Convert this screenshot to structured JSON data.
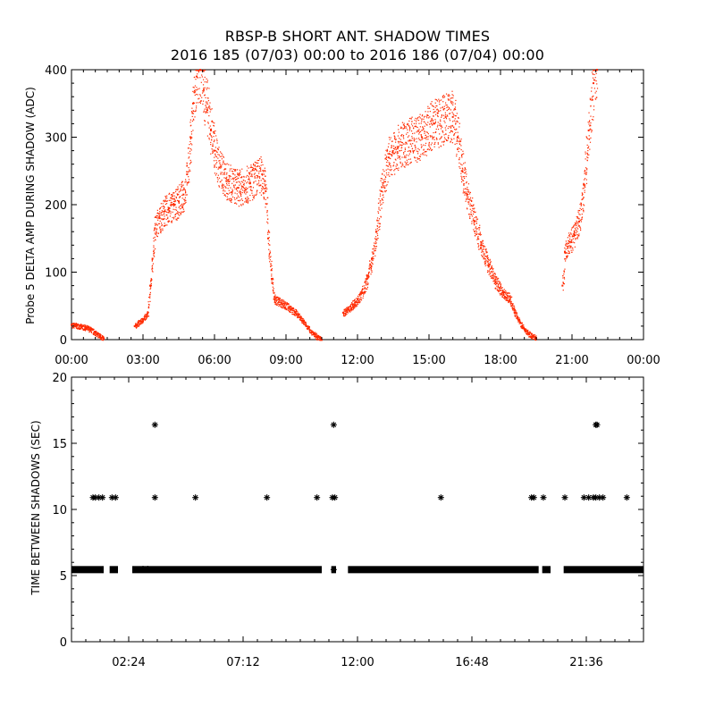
{
  "figure": {
    "title_line1": "RBSP-B SHORT ANT. SHADOW TIMES",
    "title_line2": "2016 185 (07/03) 00:00 to 2016 186 (07/04) 00:00"
  },
  "colors": {
    "amp_points": "#ff2a00",
    "interval_points": "#000000",
    "axes": "#000000",
    "background": "#ffffff"
  },
  "chart_data": [
    {
      "type": "scatter",
      "title": "",
      "xlabel": "",
      "ylabel": "Probe 5 DELTA AMP DURING SHADOW (ADC)",
      "x_unit": "hours",
      "xlim": [
        0,
        24
      ],
      "ylim": [
        0,
        400
      ],
      "xticks": [
        0,
        3,
        6,
        9,
        12,
        15,
        18,
        21,
        24
      ],
      "xtick_labels": [
        "00:00",
        "03:00",
        "06:00",
        "09:00",
        "12:00",
        "15:00",
        "18:00",
        "21:00",
        "00:00"
      ],
      "yticks": [
        0,
        100,
        200,
        300,
        400
      ],
      "ytick_labels": [
        "0",
        "100",
        "200",
        "300",
        "400"
      ],
      "grid": false,
      "series": [
        {
          "marker": "dot",
          "points": [
            [
              0.0,
              22
            ],
            [
              0.2,
              21
            ],
            [
              0.4,
              19
            ],
            [
              0.6,
              18
            ],
            [
              0.8,
              15
            ],
            [
              1.0,
              10
            ],
            [
              1.2,
              5
            ],
            [
              1.35,
              1
            ],
            [
              2.65,
              20
            ],
            [
              2.8,
              25
            ],
            [
              3.0,
              30
            ],
            [
              3.2,
              40
            ],
            [
              3.3,
              80
            ],
            [
              3.4,
              120
            ],
            [
              3.5,
              165
            ],
            [
              3.7,
              180
            ],
            [
              3.9,
              190
            ],
            [
              4.1,
              195
            ],
            [
              4.3,
              200
            ],
            [
              4.5,
              205
            ],
            [
              4.7,
              215
            ],
            [
              4.85,
              245
            ],
            [
              5.0,
              300
            ],
            [
              5.1,
              350
            ],
            [
              5.25,
              390
            ],
            [
              5.4,
              400
            ],
            [
              5.55,
              370
            ],
            [
              5.7,
              340
            ],
            [
              5.85,
              310
            ],
            [
              6.0,
              280
            ],
            [
              6.2,
              255
            ],
            [
              6.5,
              235
            ],
            [
              7.0,
              225
            ],
            [
              7.5,
              232
            ],
            [
              8.0,
              245
            ],
            [
              8.15,
              220
            ],
            [
              8.25,
              150
            ],
            [
              8.4,
              90
            ],
            [
              8.5,
              60
            ],
            [
              8.8,
              55
            ],
            [
              9.1,
              48
            ],
            [
              9.4,
              40
            ],
            [
              9.7,
              28
            ],
            [
              10.0,
              14
            ],
            [
              10.3,
              4
            ],
            [
              10.5,
              0
            ],
            [
              11.4,
              40
            ],
            [
              11.6,
              45
            ],
            [
              11.8,
              52
            ],
            [
              12.0,
              60
            ],
            [
              12.2,
              70
            ],
            [
              12.4,
              90
            ],
            [
              12.6,
              120
            ],
            [
              12.8,
              160
            ],
            [
              13.0,
              220
            ],
            [
              13.3,
              270
            ],
            [
              13.7,
              285
            ],
            [
              14.2,
              295
            ],
            [
              14.7,
              300
            ],
            [
              15.2,
              320
            ],
            [
              15.7,
              330
            ],
            [
              16.0,
              330
            ],
            [
              16.2,
              300
            ],
            [
              16.4,
              250
            ],
            [
              16.6,
              215
            ],
            [
              16.9,
              175
            ],
            [
              17.2,
              140
            ],
            [
              17.5,
              110
            ],
            [
              17.8,
              85
            ],
            [
              18.1,
              70
            ],
            [
              18.4,
              60
            ],
            [
              18.6,
              40
            ],
            [
              18.9,
              20
            ],
            [
              19.2,
              8
            ],
            [
              19.5,
              2
            ],
            [
              20.6,
              80
            ],
            [
              20.7,
              130
            ],
            [
              20.9,
              145
            ],
            [
              21.1,
              155
            ],
            [
              21.3,
              175
            ],
            [
              21.5,
              230
            ],
            [
              21.7,
              310
            ],
            [
              21.9,
              380
            ],
            [
              22.05,
              400
            ]
          ]
        }
      ]
    },
    {
      "type": "scatter",
      "title": "",
      "xlabel": "",
      "ylabel": "TIME BETWEEN SHADOWS (SEC)",
      "x_unit": "hours",
      "xlim": [
        0,
        24
      ],
      "ylim": [
        0,
        20
      ],
      "xticks": [
        2.4,
        7.2,
        12.0,
        16.8,
        21.6
      ],
      "xtick_labels": [
        "02:24",
        "07:12",
        "12:00",
        "16:48",
        "21:36"
      ],
      "yticks": [
        0,
        5,
        10,
        15,
        20
      ],
      "ytick_labels": [
        "0",
        "5",
        "10",
        "15",
        "20"
      ],
      "grid": false,
      "series": [
        {
          "marker": "asterisk",
          "points": [
            [
              0.9,
              10.9
            ],
            [
              1.0,
              10.9
            ],
            [
              1.15,
              10.9
            ],
            [
              1.3,
              10.9
            ],
            [
              1.7,
              10.9
            ],
            [
              1.85,
              10.9
            ],
            [
              3.5,
              10.9
            ],
            [
              5.2,
              10.9
            ],
            [
              8.2,
              10.9
            ],
            [
              10.3,
              10.9
            ],
            [
              10.95,
              10.9
            ],
            [
              11.05,
              10.9
            ],
            [
              15.5,
              10.9
            ],
            [
              19.3,
              10.9
            ],
            [
              19.4,
              10.9
            ],
            [
              19.8,
              10.9
            ],
            [
              20.7,
              10.9
            ],
            [
              21.5,
              10.9
            ],
            [
              21.7,
              10.9
            ],
            [
              21.9,
              10.9
            ],
            [
              22.0,
              10.9
            ],
            [
              22.15,
              10.9
            ],
            [
              22.3,
              10.9
            ],
            [
              23.3,
              10.9
            ],
            [
              3.5,
              16.4
            ],
            [
              11.0,
              16.4
            ],
            [
              22.0,
              16.4
            ],
            [
              22.05,
              16.4
            ],
            [
              11.0,
              5.45
            ],
            [
              1.75,
              5.45
            ],
            [
              3.0,
              5.5
            ],
            [
              3.2,
              5.5
            ]
          ],
          "bands": [
            [
              0.0,
              1.35,
              5.45
            ],
            [
              1.6,
              1.95,
              5.45
            ],
            [
              2.55,
              10.5,
              5.45
            ],
            [
              10.9,
              11.1,
              5.45
            ],
            [
              11.6,
              19.6,
              5.45
            ],
            [
              19.75,
              20.1,
              5.45
            ],
            [
              20.65,
              24.0,
              5.45
            ]
          ]
        }
      ]
    }
  ]
}
